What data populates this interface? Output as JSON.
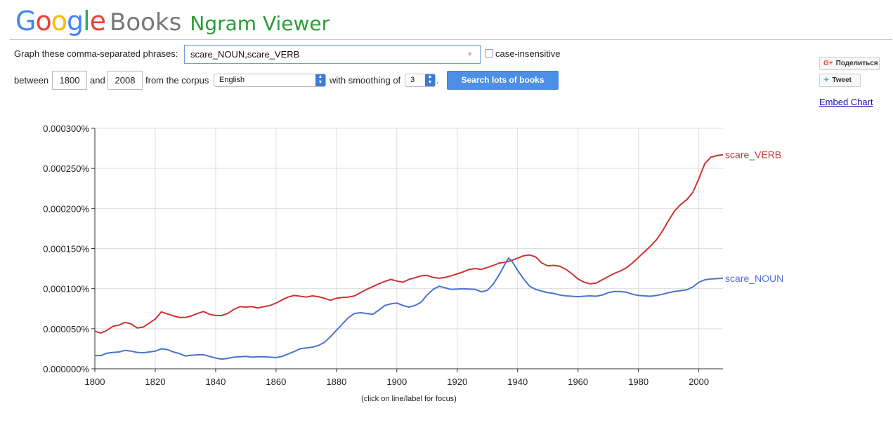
{
  "logo": {
    "google_letters": [
      {
        "ch": "G",
        "color": "#4285f4"
      },
      {
        "ch": "o",
        "color": "#ea4335"
      },
      {
        "ch": "o",
        "color": "#fbbc05"
      },
      {
        "ch": "g",
        "color": "#4285f4"
      },
      {
        "ch": "l",
        "color": "#34a853"
      },
      {
        "ch": "e",
        "color": "#ea4335"
      }
    ],
    "books": "Books",
    "ngram": "Ngram Viewer"
  },
  "form": {
    "phrases_label": "Graph these comma-separated phrases:",
    "phrases_value": "scare_NOUN,scare_VERB",
    "case_insensitive_label": "case-insensitive",
    "between_label": "between",
    "year_start": "1800",
    "and_label": "and",
    "year_end": "2008",
    "corpus_label": "from the corpus",
    "corpus_value": "English",
    "smoothing_label": "with smoothing of",
    "smoothing_value": "3",
    "period": ".",
    "search_button": "Search lots of books"
  },
  "share": {
    "gplus_icon": "G+",
    "gplus_label": "Поделиться",
    "tweet_icon": "twitter-bird-icon",
    "tweet_label": "Tweet",
    "embed_label": "Embed Chart"
  },
  "chart_data": {
    "type": "line",
    "xlim": [
      1800,
      2008
    ],
    "ylim": [
      0,
      0.0003
    ],
    "x_ticks": [
      1800,
      1820,
      1840,
      1860,
      1880,
      1900,
      1920,
      1940,
      1960,
      1980,
      2000
    ],
    "y_ticks": [
      0,
      5e-05,
      0.0001,
      0.00015,
      0.0002,
      0.00025,
      0.0003
    ],
    "y_tick_labels": [
      "0.000000%",
      "0.000050%",
      "0.000100%",
      "0.000150%",
      "0.000200%",
      "0.000250%",
      "0.000300%"
    ],
    "note": "(click on line/label for focus)",
    "grid": true,
    "series": [
      {
        "name": "scare_VERB",
        "color": "#cc3333",
        "points": [
          [
            1800,
            4.7e-05
          ],
          [
            1802,
            4.45e-05
          ],
          [
            1804,
            4.8e-05
          ],
          [
            1806,
            5.3e-05
          ],
          [
            1808,
            5.45e-05
          ],
          [
            1810,
            5.8e-05
          ],
          [
            1812,
            5.6e-05
          ],
          [
            1814,
            5.1e-05
          ],
          [
            1816,
            5.2e-05
          ],
          [
            1818,
            5.7e-05
          ],
          [
            1820,
            6.2e-05
          ],
          [
            1822,
            7.1e-05
          ],
          [
            1824,
            6.85e-05
          ],
          [
            1826,
            6.6e-05
          ],
          [
            1828,
            6.4e-05
          ],
          [
            1830,
            6.4e-05
          ],
          [
            1832,
            6.6e-05
          ],
          [
            1834,
            6.9e-05
          ],
          [
            1836,
            7.15e-05
          ],
          [
            1838,
            6.8e-05
          ],
          [
            1840,
            6.65e-05
          ],
          [
            1842,
            6.65e-05
          ],
          [
            1844,
            6.9e-05
          ],
          [
            1846,
            7.4e-05
          ],
          [
            1848,
            7.75e-05
          ],
          [
            1850,
            7.7e-05
          ],
          [
            1852,
            7.75e-05
          ],
          [
            1854,
            7.6e-05
          ],
          [
            1856,
            7.75e-05
          ],
          [
            1858,
            7.9e-05
          ],
          [
            1860,
            8.2e-05
          ],
          [
            1862,
            8.6e-05
          ],
          [
            1864,
            8.95e-05
          ],
          [
            1866,
            9.15e-05
          ],
          [
            1868,
            9.05e-05
          ],
          [
            1870,
            8.95e-05
          ],
          [
            1872,
            9.1e-05
          ],
          [
            1874,
            9e-05
          ],
          [
            1876,
            8.8e-05
          ],
          [
            1878,
            8.55e-05
          ],
          [
            1880,
            8.8e-05
          ],
          [
            1882,
            8.9e-05
          ],
          [
            1884,
            8.95e-05
          ],
          [
            1886,
            9.1e-05
          ],
          [
            1888,
            9.5e-05
          ],
          [
            1890,
            9.9e-05
          ],
          [
            1892,
            0.0001025
          ],
          [
            1894,
            0.000106
          ],
          [
            1896,
            0.000109
          ],
          [
            1898,
            0.0001115
          ],
          [
            1900,
            0.0001095
          ],
          [
            1902,
            0.000108
          ],
          [
            1904,
            0.0001115
          ],
          [
            1906,
            0.0001135
          ],
          [
            1908,
            0.000116
          ],
          [
            1910,
            0.0001165
          ],
          [
            1912,
            0.000114
          ],
          [
            1914,
            0.000113
          ],
          [
            1916,
            0.000114
          ],
          [
            1918,
            0.000116
          ],
          [
            1920,
            0.0001185
          ],
          [
            1922,
            0.000121
          ],
          [
            1924,
            0.000124
          ],
          [
            1926,
            0.000125
          ],
          [
            1928,
            0.000124
          ],
          [
            1930,
            0.0001265
          ],
          [
            1932,
            0.000129
          ],
          [
            1934,
            0.000132
          ],
          [
            1936,
            0.000133
          ],
          [
            1938,
            0.000135
          ],
          [
            1940,
            0.000138
          ],
          [
            1942,
            0.000141
          ],
          [
            1944,
            0.000142
          ],
          [
            1946,
            0.0001395
          ],
          [
            1948,
            0.000132
          ],
          [
            1950,
            0.0001285
          ],
          [
            1952,
            0.000129
          ],
          [
            1954,
            0.000128
          ],
          [
            1956,
            0.000124
          ],
          [
            1958,
            0.0001185
          ],
          [
            1960,
            0.000112
          ],
          [
            1962,
            0.000108
          ],
          [
            1964,
            0.000106
          ],
          [
            1966,
            0.000107
          ],
          [
            1968,
            0.000111
          ],
          [
            1970,
            0.000115
          ],
          [
            1972,
            0.000119
          ],
          [
            1974,
            0.000122
          ],
          [
            1976,
            0.000126
          ],
          [
            1978,
            0.000132
          ],
          [
            1980,
            0.000139
          ],
          [
            1982,
            0.000146
          ],
          [
            1984,
            0.000153
          ],
          [
            1986,
            0.000161
          ],
          [
            1988,
            0.000172
          ],
          [
            1990,
            0.000185
          ],
          [
            1992,
            0.000197
          ],
          [
            1994,
            0.000205
          ],
          [
            1996,
            0.000211
          ],
          [
            1998,
            0.00022
          ],
          [
            2000,
            0.000237
          ],
          [
            2002,
            0.000256
          ],
          [
            2004,
            0.000264
          ],
          [
            2006,
            0.000266
          ],
          [
            2008,
            0.000267
          ]
        ]
      },
      {
        "name": "scare_NOUN",
        "color": "#4a72d0",
        "points": [
          [
            1800,
            1.65e-05
          ],
          [
            1802,
            1.65e-05
          ],
          [
            1804,
            1.95e-05
          ],
          [
            1806,
            2.05e-05
          ],
          [
            1808,
            2.1e-05
          ],
          [
            1810,
            2.3e-05
          ],
          [
            1812,
            2.2e-05
          ],
          [
            1814,
            2.05e-05
          ],
          [
            1816,
            2e-05
          ],
          [
            1818,
            2.1e-05
          ],
          [
            1820,
            2.2e-05
          ],
          [
            1822,
            2.5e-05
          ],
          [
            1824,
            2.4e-05
          ],
          [
            1826,
            2.1e-05
          ],
          [
            1828,
            1.9e-05
          ],
          [
            1830,
            1.6e-05
          ],
          [
            1832,
            1.7e-05
          ],
          [
            1834,
            1.75e-05
          ],
          [
            1836,
            1.75e-05
          ],
          [
            1838,
            1.55e-05
          ],
          [
            1840,
            1.35e-05
          ],
          [
            1842,
            1.2e-05
          ],
          [
            1844,
            1.3e-05
          ],
          [
            1846,
            1.45e-05
          ],
          [
            1848,
            1.5e-05
          ],
          [
            1850,
            1.55e-05
          ],
          [
            1852,
            1.45e-05
          ],
          [
            1854,
            1.5e-05
          ],
          [
            1856,
            1.5e-05
          ],
          [
            1858,
            1.45e-05
          ],
          [
            1860,
            1.4e-05
          ],
          [
            1862,
            1.55e-05
          ],
          [
            1864,
            1.85e-05
          ],
          [
            1866,
            2.15e-05
          ],
          [
            1868,
            2.5e-05
          ],
          [
            1870,
            2.6e-05
          ],
          [
            1872,
            2.7e-05
          ],
          [
            1874,
            2.9e-05
          ],
          [
            1876,
            3.3e-05
          ],
          [
            1878,
            4e-05
          ],
          [
            1880,
            4.8e-05
          ],
          [
            1882,
            5.6e-05
          ],
          [
            1884,
            6.4e-05
          ],
          [
            1886,
            6.9e-05
          ],
          [
            1888,
            7e-05
          ],
          [
            1890,
            6.9e-05
          ],
          [
            1892,
            6.8e-05
          ],
          [
            1894,
            7.3e-05
          ],
          [
            1896,
            7.9e-05
          ],
          [
            1898,
            8.1e-05
          ],
          [
            1900,
            8.2e-05
          ],
          [
            1902,
            7.9e-05
          ],
          [
            1904,
            7.7e-05
          ],
          [
            1906,
            7.9e-05
          ],
          [
            1908,
            8.3e-05
          ],
          [
            1910,
            9.2e-05
          ],
          [
            1912,
            9.9e-05
          ],
          [
            1914,
            0.000103
          ],
          [
            1916,
            0.000101
          ],
          [
            1918,
            9.9e-05
          ],
          [
            1920,
            9.95e-05
          ],
          [
            1922,
            0.0001
          ],
          [
            1924,
            9.95e-05
          ],
          [
            1926,
            9.9e-05
          ],
          [
            1928,
            9.6e-05
          ],
          [
            1930,
            9.8e-05
          ],
          [
            1932,
            0.000106
          ],
          [
            1934,
            0.000118
          ],
          [
            1936,
            0.000132
          ],
          [
            1937,
            0.000138
          ],
          [
            1938,
            0.000135
          ],
          [
            1940,
            0.000123
          ],
          [
            1942,
            0.000112
          ],
          [
            1944,
            0.000103
          ],
          [
            1946,
            9.9e-05
          ],
          [
            1948,
            9.7e-05
          ],
          [
            1950,
            9.5e-05
          ],
          [
            1952,
            9.4e-05
          ],
          [
            1954,
            9.2e-05
          ],
          [
            1956,
            9.1e-05
          ],
          [
            1958,
            9.05e-05
          ],
          [
            1960,
            9e-05
          ],
          [
            1962,
            9.05e-05
          ],
          [
            1964,
            9.1e-05
          ],
          [
            1966,
            9.05e-05
          ],
          [
            1968,
            9.2e-05
          ],
          [
            1970,
            9.5e-05
          ],
          [
            1972,
            9.65e-05
          ],
          [
            1974,
            9.65e-05
          ],
          [
            1976,
            9.55e-05
          ],
          [
            1978,
            9.3e-05
          ],
          [
            1980,
            9.15e-05
          ],
          [
            1982,
            9.1e-05
          ],
          [
            1984,
            9.05e-05
          ],
          [
            1986,
            9.15e-05
          ],
          [
            1988,
            9.3e-05
          ],
          [
            1990,
            9.5e-05
          ],
          [
            1992,
            9.65e-05
          ],
          [
            1994,
            9.75e-05
          ],
          [
            1996,
            9.85e-05
          ],
          [
            1998,
            0.000102
          ],
          [
            2000,
            0.000108
          ],
          [
            2002,
            0.000111
          ],
          [
            2004,
            0.000112
          ],
          [
            2006,
            0.0001125
          ],
          [
            2008,
            0.000113
          ]
        ]
      }
    ]
  }
}
